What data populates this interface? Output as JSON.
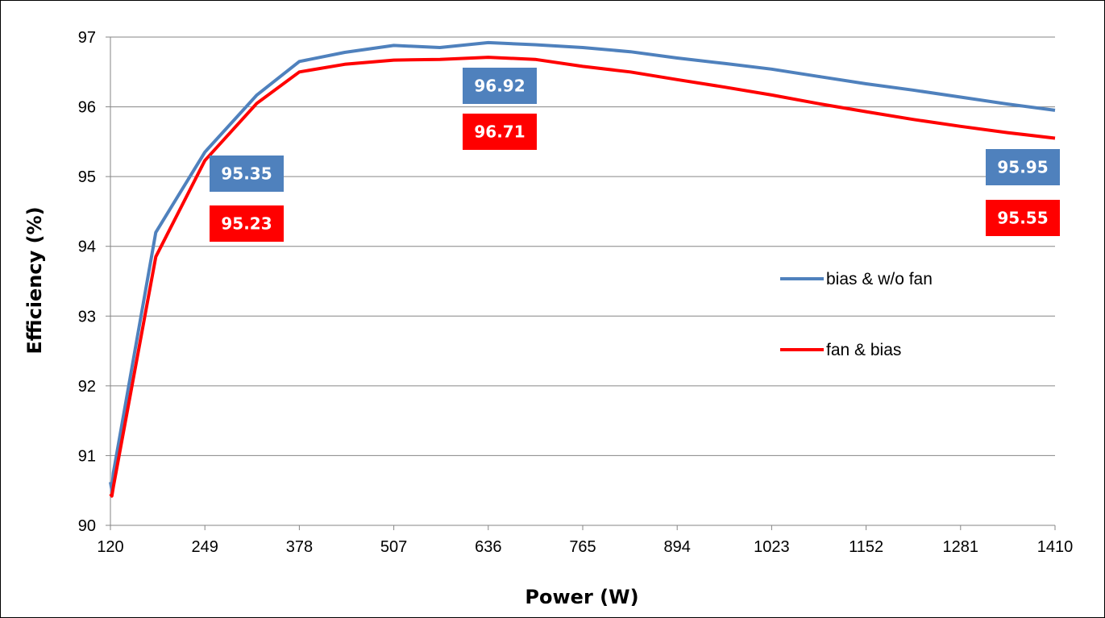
{
  "chart_data": {
    "type": "line",
    "xlabel": "Power (W)",
    "ylabel": "Efficiency (%)",
    "xlim": [
      120,
      1410
    ],
    "ylim": [
      90,
      97
    ],
    "x_ticks": [
      "120",
      "249",
      "378",
      "507",
      "636",
      "765",
      "894",
      "1023",
      "1152",
      "1281",
      "1410"
    ],
    "y_ticks": [
      "90",
      "91",
      "92",
      "93",
      "94",
      "95",
      "96",
      "97"
    ],
    "grid": "horizontal",
    "legend_position": "right",
    "series": [
      {
        "name": "bias & w/o fan",
        "color": "#4f81bd",
        "x": [
          120,
          122,
          124,
          182,
          249,
          320,
          378,
          440,
          507,
          570,
          636,
          700,
          765,
          830,
          894,
          960,
          1023,
          1090,
          1152,
          1216,
          1281,
          1345,
          1410
        ],
        "y": [
          90.62,
          90.5,
          90.75,
          94.2,
          95.35,
          96.17,
          96.65,
          96.78,
          96.88,
          96.85,
          96.92,
          96.89,
          96.85,
          96.79,
          96.7,
          96.62,
          96.54,
          96.43,
          96.33,
          96.24,
          96.14,
          96.04,
          95.95
        ]
      },
      {
        "name": "fan & bias",
        "color": "#ff0000",
        "x": [
          120,
          122,
          124,
          182,
          249,
          320,
          378,
          440,
          507,
          570,
          636,
          700,
          765,
          830,
          894,
          960,
          1023,
          1090,
          1152,
          1216,
          1281,
          1345,
          1410
        ],
        "y": [
          90.45,
          90.42,
          90.55,
          93.85,
          95.23,
          96.05,
          96.5,
          96.61,
          96.67,
          96.68,
          96.71,
          96.68,
          96.58,
          96.5,
          96.39,
          96.28,
          96.17,
          96.04,
          95.93,
          95.82,
          95.72,
          95.63,
          95.55
        ]
      }
    ],
    "data_labels": [
      {
        "text": "95.35",
        "series": 0
      },
      {
        "text": "95.23",
        "series": 1
      },
      {
        "text": "96.92",
        "series": 0
      },
      {
        "text": "96.71",
        "series": 1
      },
      {
        "text": "95.95",
        "series": 0
      },
      {
        "text": "95.55",
        "series": 1
      }
    ]
  }
}
